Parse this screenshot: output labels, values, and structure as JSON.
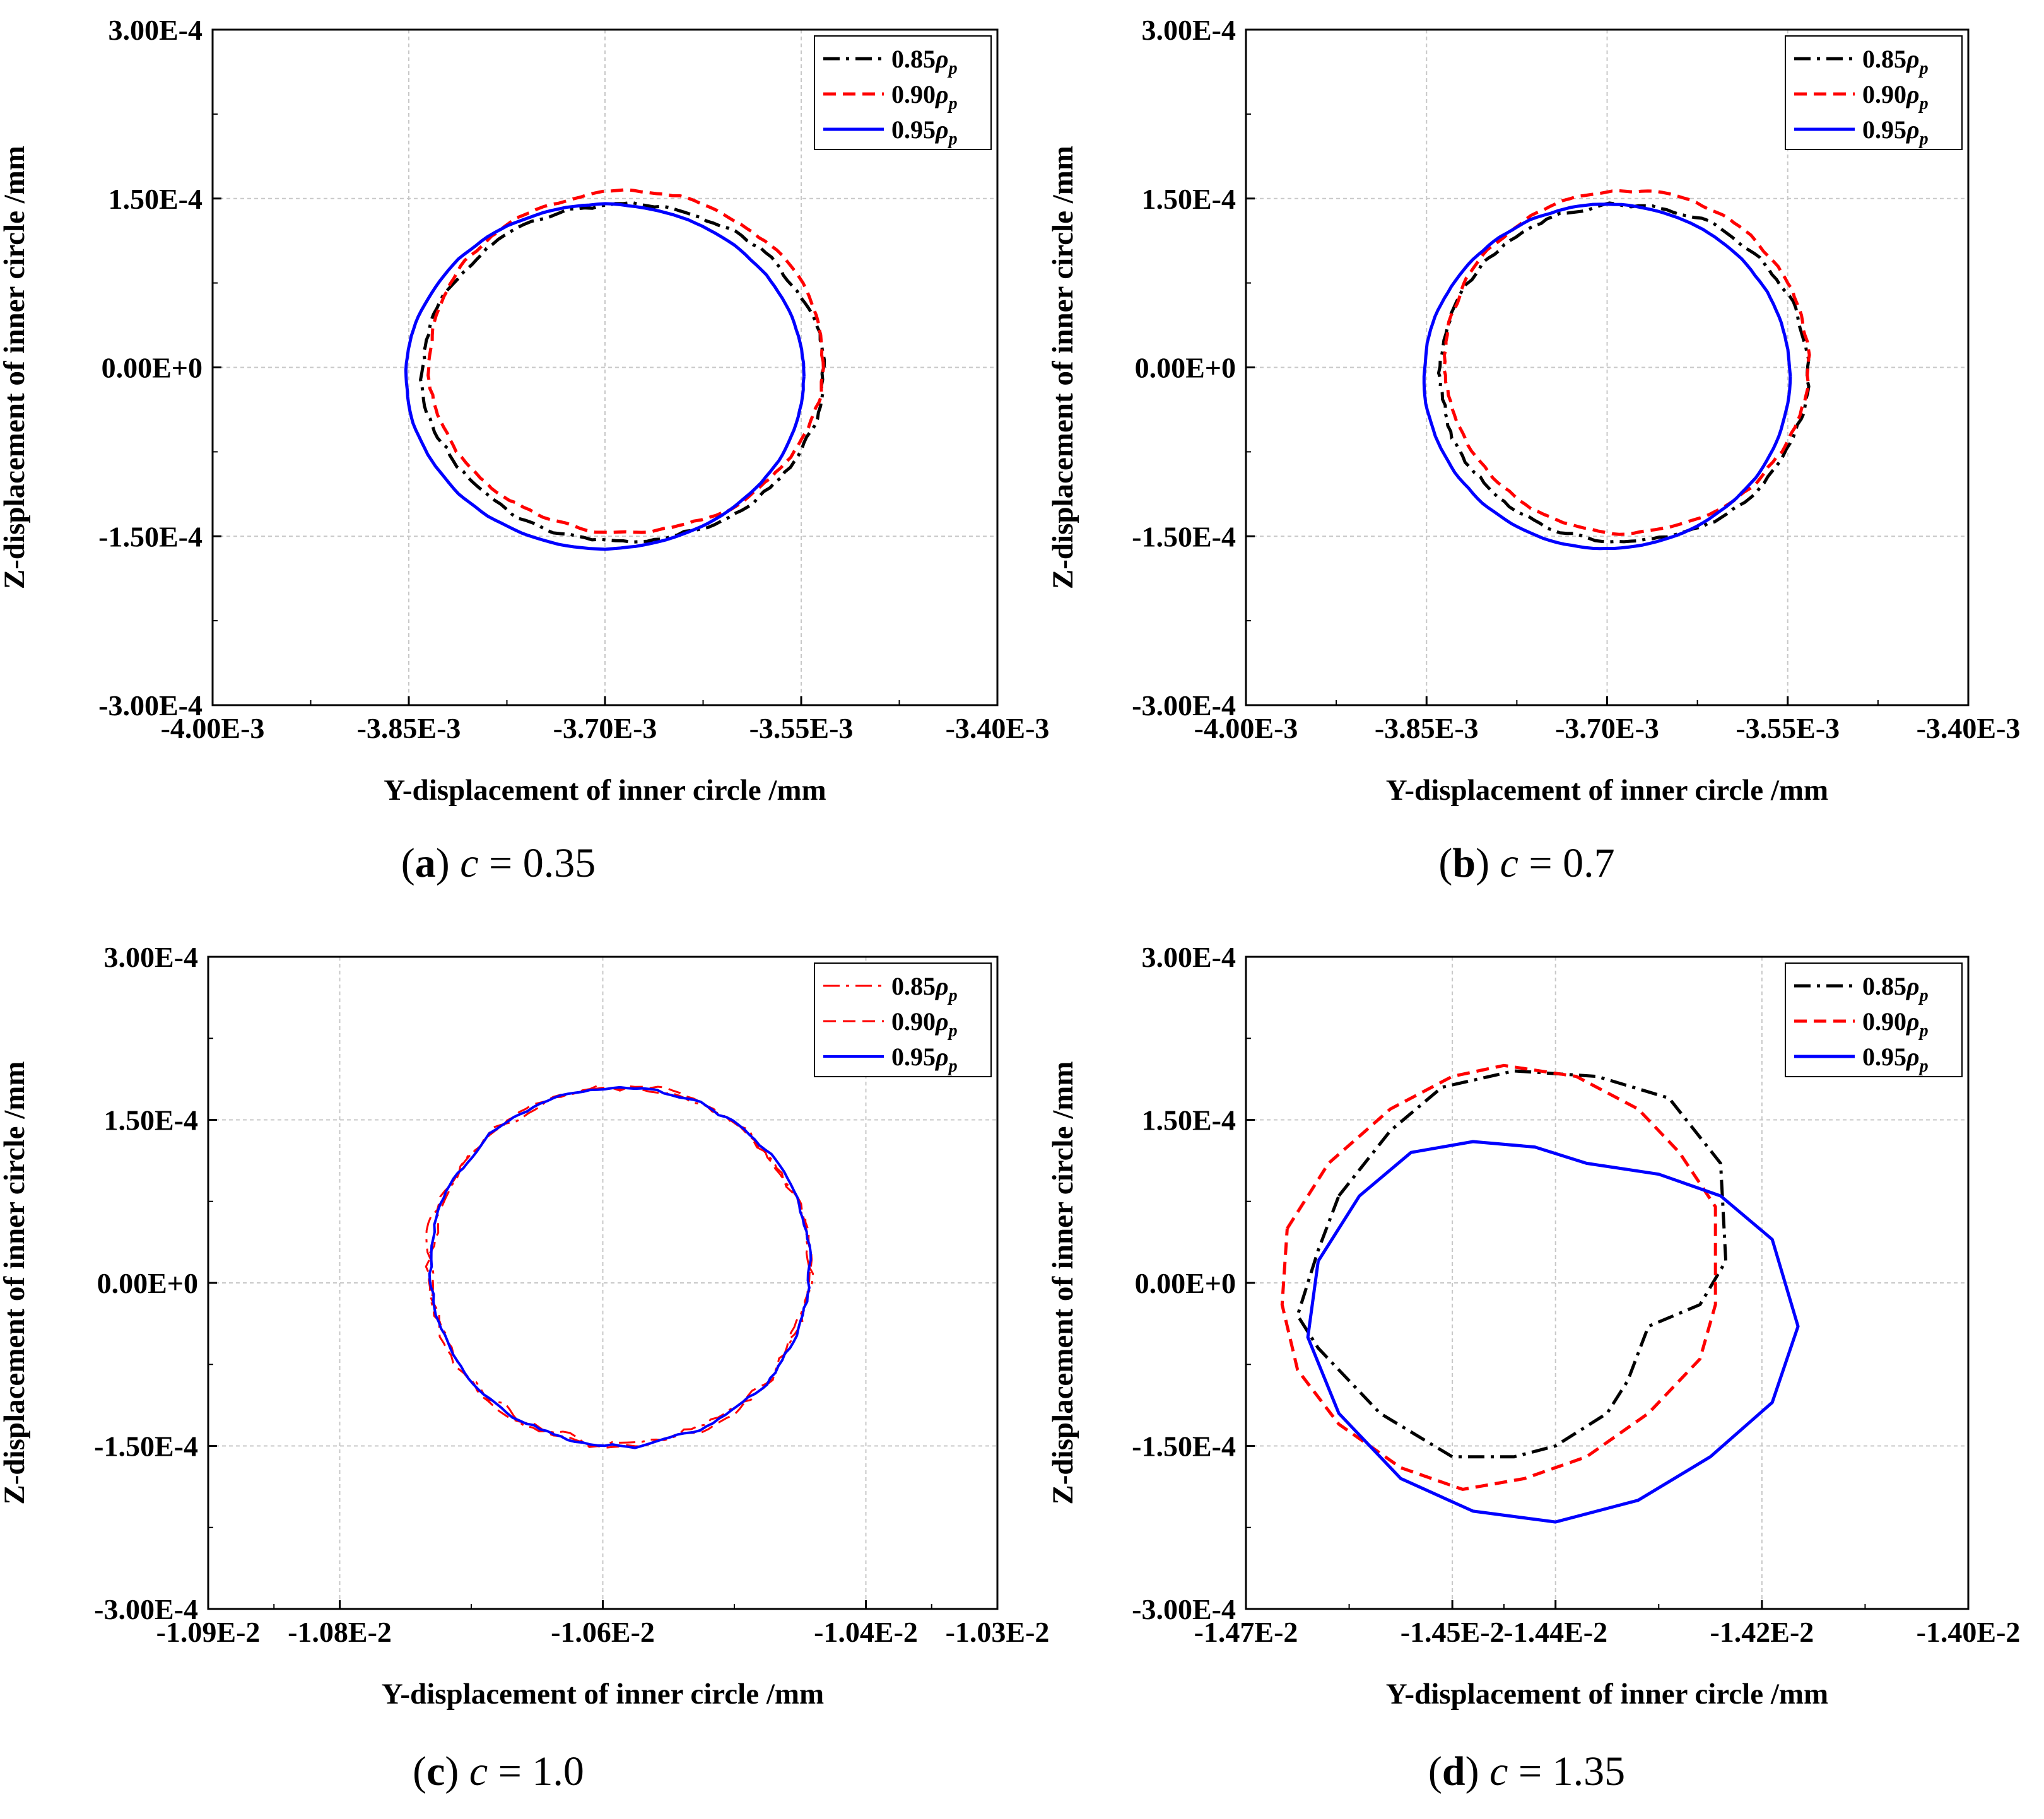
{
  "chart_data": [
    {
      "id": "a",
      "type": "line",
      "caption": {
        "label": "a",
        "var": "c",
        "value": "0.35"
      },
      "xlabel": "Y-displacement of inner circle /mm",
      "ylabel": "Z-displacement of inner circle /mm",
      "xlim": [
        -0.004,
        -0.0034
      ],
      "ylim": [
        -0.0003,
        0.0003
      ],
      "xticks": [
        -0.004,
        -0.00385,
        -0.0037,
        -0.00355,
        -0.0034
      ],
      "xtick_labels": [
        "-4.00E-3",
        "-3.85E-3",
        "-3.70E-3",
        "-3.55E-3",
        "-3.40E-3"
      ],
      "yticks": [
        0.0003,
        0.00015,
        0,
        -0.00015,
        -0.0003
      ],
      "ytick_labels": [
        "3.00E-4",
        "1.50E-4",
        "0.00E+0",
        "-1.50E-4",
        "-3.00E-4"
      ],
      "grid": true,
      "legend_position": "top-right",
      "series": [
        {
          "name": "0.85ρp",
          "name_base": "0.85",
          "name_sym": "ρ",
          "name_sub": "p",
          "color": "#000000",
          "style": "dashdot",
          "cx": -0.003686,
          "cy": -5e-06,
          "rx": 0.000153,
          "ry": 0.00015,
          "roughness": 0.02,
          "seed": 1
        },
        {
          "name": "0.90ρp",
          "name_base": "0.90",
          "name_sym": "ρ",
          "name_sub": "p",
          "color": "#ff0000",
          "style": "dash",
          "cx": -0.003684,
          "cy": 5e-06,
          "rx": 0.000151,
          "ry": 0.000152,
          "roughness": 0.015,
          "seed": 2
        },
        {
          "name": "0.95ρp",
          "name_base": "0.95",
          "name_sym": "ρ",
          "name_sub": "p",
          "color": "#0000ff",
          "style": "solid",
          "cx": -0.0037,
          "cy": -8e-06,
          "rx": 0.000152,
          "ry": 0.000153,
          "roughness": 0.005,
          "seed": 3
        }
      ]
    },
    {
      "id": "b",
      "type": "line",
      "caption": {
        "label": "b",
        "var": "c",
        "value": "0.7"
      },
      "xlabel": "Y-displacement of inner circle /mm",
      "ylabel": "Z-displacement of inner circle /mm",
      "xlim": [
        -0.004,
        -0.0034
      ],
      "ylim": [
        -0.0003,
        0.0003
      ],
      "xticks": [
        -0.004,
        -0.00385,
        -0.0037,
        -0.00355,
        -0.0034
      ],
      "xtick_labels": [
        "-4.00E-3",
        "-3.85E-3",
        "-3.70E-3",
        "-3.55E-3",
        "-3.40E-3"
      ],
      "yticks": [
        0.0003,
        0.00015,
        0,
        -0.00015,
        -0.0003
      ],
      "ytick_labels": [
        "3.00E-4",
        "1.50E-4",
        "0.00E+0",
        "-1.50E-4",
        "-3.00E-4"
      ],
      "grid": true,
      "legend_position": "top-right",
      "series": [
        {
          "name": "0.85ρp",
          "name_base": "0.85",
          "name_sym": "ρ",
          "name_sub": "p",
          "color": "#000000",
          "style": "dashdot",
          "cx": -0.003686,
          "cy": -5e-06,
          "rx": 0.000153,
          "ry": 0.00015,
          "roughness": 0.02,
          "seed": 4
        },
        {
          "name": "0.90ρp",
          "name_base": "0.90",
          "name_sym": "ρ",
          "name_sub": "p",
          "color": "#ff0000",
          "style": "dash",
          "cx": -0.003684,
          "cy": 5e-06,
          "rx": 0.000151,
          "ry": 0.000152,
          "roughness": 0.015,
          "seed": 5
        },
        {
          "name": "0.95ρp",
          "name_base": "0.95",
          "name_sym": "ρ",
          "name_sub": "p",
          "color": "#0000ff",
          "style": "solid",
          "cx": -0.0037,
          "cy": -8e-06,
          "rx": 0.000152,
          "ry": 0.000153,
          "roughness": 0.005,
          "seed": 6
        }
      ]
    },
    {
      "id": "c",
      "type": "line",
      "caption": {
        "label": "c",
        "var": "c",
        "value": "1.0"
      },
      "xlabel": "Y-displacement of inner circle /mm",
      "ylabel": "Z-displacement of inner circle /mm",
      "xlim": [
        -0.0109,
        -0.0103
      ],
      "ylim": [
        -0.0003,
        0.0003
      ],
      "xticks": [
        -0.0109,
        -0.0108,
        -0.0106,
        -0.0104,
        -0.0103
      ],
      "xtick_labels": [
        "-1.09E-2",
        "-1.08E-2",
        "-1.06E-2",
        "-1.04E-2",
        "-1.03E-2"
      ],
      "yticks": [
        0.0003,
        0.00015,
        0,
        -0.00015,
        -0.0003
      ],
      "ytick_labels": [
        "3.00E-4",
        "1.50E-4",
        "0.00E+0",
        "-1.50E-4",
        "-3.00E-4"
      ],
      "grid": true,
      "legend_position": "top-right",
      "series": [
        {
          "name": "0.85ρp",
          "name_base": "0.85",
          "name_sym": "ρ",
          "name_sub": "p",
          "color": "#ff0000",
          "style": "dashdot",
          "width": 3,
          "cx": -0.010587,
          "cy": 1.5e-05,
          "rx": 0.000145,
          "ry": 0.000165,
          "roughness": 0.04,
          "seed": 7
        },
        {
          "name": "0.90ρp",
          "name_base": "0.90",
          "name_sym": "ρ",
          "name_sub": "p",
          "color": "#ff0000",
          "style": "dash",
          "width": 3,
          "cx": -0.010587,
          "cy": 1.5e-05,
          "rx": 0.000145,
          "ry": 0.000165,
          "roughness": 0.035,
          "seed": 8
        },
        {
          "name": "0.95ρp",
          "name_base": "0.95",
          "name_sym": "ρ",
          "name_sub": "p",
          "color": "#0000ff",
          "style": "solid",
          "width": 4,
          "cx": -0.010587,
          "cy": 1.5e-05,
          "rx": 0.000145,
          "ry": 0.000165,
          "roughness": 0.02,
          "seed": 9
        }
      ]
    },
    {
      "id": "d",
      "type": "line",
      "caption": {
        "label": "d",
        "var": "c",
        "value": "1.35"
      },
      "xlabel": "Y-displacement of inner circle /mm",
      "ylabel": "Z-displacement of inner circle /mm",
      "xlim": [
        -0.0147,
        -0.014
      ],
      "ylim": [
        -0.0003,
        0.0003
      ],
      "xticks": [
        -0.0147,
        -0.0145,
        -0.0144,
        -0.0142,
        -0.014
      ],
      "xtick_labels": [
        "-1.47E-2",
        "-1.45E-2",
        "-1.44E-2",
        "-1.42E-2",
        "-1.40E-2"
      ],
      "yticks": [
        0.0003,
        0.00015,
        0,
        -0.00015,
        -0.0003
      ],
      "ytick_labels": [
        "3.00E-4",
        "1.50E-4",
        "0.00E+0",
        "-1.50E-4",
        "-3.00E-4"
      ],
      "grid": true,
      "legend_position": "top-right",
      "series": [
        {
          "name": "0.85ρp",
          "name_base": "0.85",
          "name_sym": "ρ",
          "name_sub": "p",
          "color": "#000000",
          "style": "dashdot",
          "points": [
            [
              -0.01461,
              8e-05
            ],
            [
              -0.01456,
              0.00014
            ],
            [
              -0.01451,
              0.00018
            ],
            [
              -0.01444,
              0.000195
            ],
            [
              -0.01436,
              0.00019
            ],
            [
              -0.01429,
              0.00017
            ],
            [
              -0.01424,
              0.00011
            ],
            [
              -0.014235,
              2e-05
            ],
            [
              -0.01426,
              -2e-05
            ],
            [
              -0.01431,
              -4e-05
            ],
            [
              -0.01433,
              -9e-05
            ],
            [
              -0.01435,
              -0.00012
            ],
            [
              -0.0144,
              -0.00015
            ],
            [
              -0.01444,
              -0.00016
            ],
            [
              -0.0145,
              -0.00016
            ],
            [
              -0.01457,
              -0.00012
            ],
            [
              -0.01463,
              -6e-05
            ],
            [
              -0.01465,
              -3e-05
            ],
            [
              -0.01463,
              3e-05
            ],
            [
              -0.01461,
              8e-05
            ]
          ]
        },
        {
          "name": "0.90ρp",
          "name_base": "0.90",
          "name_sym": "ρ",
          "name_sub": "p",
          "color": "#ff0000",
          "style": "dash",
          "points": [
            [
              -0.01466,
              5e-05
            ],
            [
              -0.01462,
              0.00011
            ],
            [
              -0.01456,
              0.00016
            ],
            [
              -0.0145,
              0.00019
            ],
            [
              -0.01445,
              0.0002
            ],
            [
              -0.01438,
              0.00019
            ],
            [
              -0.01432,
              0.00016
            ],
            [
              -0.01428,
              0.00012
            ],
            [
              -0.014245,
              7e-05
            ],
            [
              -0.014245,
              -2e-05
            ],
            [
              -0.01426,
              -7e-05
            ],
            [
              -0.01431,
              -0.00012
            ],
            [
              -0.01437,
              -0.00016
            ],
            [
              -0.01443,
              -0.00018
            ],
            [
              -0.01449,
              -0.00019
            ],
            [
              -0.01455,
              -0.00017
            ],
            [
              -0.01461,
              -0.00013
            ],
            [
              -0.01465,
              -8e-05
            ],
            [
              -0.014665,
              -2e-05
            ],
            [
              -0.01466,
              5e-05
            ]
          ]
        },
        {
          "name": "0.95ρp",
          "name_base": "0.95",
          "name_sym": "ρ",
          "name_sub": "p",
          "color": "#0000ff",
          "style": "solid",
          "points": [
            [
              -0.01463,
              2e-05
            ],
            [
              -0.01459,
              8e-05
            ],
            [
              -0.01454,
              0.00012
            ],
            [
              -0.01448,
              0.00013
            ],
            [
              -0.01442,
              0.000125
            ],
            [
              -0.01437,
              0.00011
            ],
            [
              -0.0143,
              0.0001
            ],
            [
              -0.01424,
              8e-05
            ],
            [
              -0.01419,
              4e-05
            ],
            [
              -0.014165,
              -4e-05
            ],
            [
              -0.01419,
              -0.00011
            ],
            [
              -0.01425,
              -0.00016
            ],
            [
              -0.01432,
              -0.0002
            ],
            [
              -0.0144,
              -0.00022
            ],
            [
              -0.01448,
              -0.00021
            ],
            [
              -0.01455,
              -0.00018
            ],
            [
              -0.01461,
              -0.00012
            ],
            [
              -0.01464,
              -5e-05
            ],
            [
              -0.01463,
              2e-05
            ]
          ]
        }
      ]
    }
  ]
}
